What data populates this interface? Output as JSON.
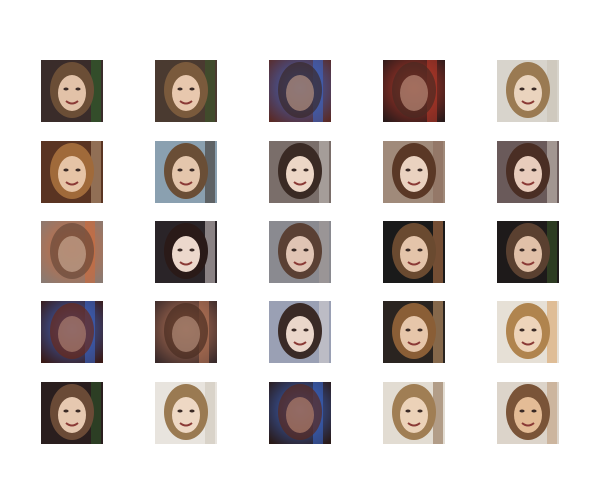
{
  "grid": {
    "rows": 5,
    "cols": 5,
    "tiles": [
      {
        "bg": "#3a2c2a",
        "hair": "#6b4e36",
        "skin": "#e2c2a8",
        "accent": "#2e6a2a",
        "style": "face"
      },
      {
        "bg": "#4a3a30",
        "hair": "#7a5a3c",
        "skin": "#e8c8ae",
        "accent": "#3a5a2a",
        "style": "face"
      },
      {
        "bg": "#5a2a26",
        "hair": "#3a2a2a",
        "skin": "#c8a08a",
        "accent": "#3a6ad0",
        "style": "blur"
      },
      {
        "bg": "#2a1a1a",
        "hair": "#4a2a22",
        "skin": "#c89a86",
        "accent": "#c03a2a",
        "style": "blur"
      },
      {
        "bg": "#d8d4cc",
        "hair": "#9a7a52",
        "skin": "#ead4be",
        "accent": "#c8c0b2",
        "style": "face"
      },
      {
        "bg": "#5a3422",
        "hair": "#a06a3a",
        "skin": "#e6c4a6",
        "accent": "#c0a080",
        "style": "face"
      },
      {
        "bg": "#8aa0b0",
        "hair": "#6a4e36",
        "skin": "#e4c6ac",
        "accent": "#3a3028",
        "style": "face"
      },
      {
        "bg": "#7a6e6a",
        "hair": "#3a2a24",
        "skin": "#ecd6c6",
        "accent": "#c8c4c0",
        "style": "face"
      },
      {
        "bg": "#a08a7a",
        "hair": "#5a3826",
        "skin": "#ead2c0",
        "accent": "#8a6a5a",
        "style": "face"
      },
      {
        "bg": "#6a5a5a",
        "hair": "#4a2e24",
        "skin": "#e8ccbc",
        "accent": "#d0c8c0",
        "style": "face"
      },
      {
        "bg": "#8a7a72",
        "hair": "#6a4a3a",
        "skin": "#d4b49e",
        "accent": "#d06a3a",
        "style": "blur"
      },
      {
        "bg": "#2a2428",
        "hair": "#2a1a18",
        "skin": "#ecd8cc",
        "accent": "#d8d0d0",
        "style": "face"
      },
      {
        "bg": "#8a8a90",
        "hair": "#5a4034",
        "skin": "#e0c4b4",
        "accent": "#a89e9a",
        "style": "face"
      },
      {
        "bg": "#1a1a1a",
        "hair": "#6a4a30",
        "skin": "#e4c4aa",
        "accent": "#c07a4a",
        "style": "face"
      },
      {
        "bg": "#1e1a1a",
        "hair": "#5a4030",
        "skin": "#e0c0a8",
        "accent": "#3a5a2a",
        "style": "face"
      },
      {
        "bg": "#3a1a16",
        "hair": "#6a2a1a",
        "skin": "#b88a78",
        "accent": "#3a6ad0",
        "style": "blur"
      },
      {
        "bg": "#3a2a2a",
        "hair": "#4a2e22",
        "skin": "#c09a86",
        "accent": "#c07a5a",
        "style": "blur"
      },
      {
        "bg": "#9aa0b4",
        "hair": "#3a2a26",
        "skin": "#ead6ca",
        "accent": "#d8d4d4",
        "style": "face"
      },
      {
        "bg": "#2a2420",
        "hair": "#8a5e36",
        "skin": "#e6c6aa",
        "accent": "#d0a070",
        "style": "face"
      },
      {
        "bg": "#e6e0d6",
        "hair": "#b0844e",
        "skin": "#eed4ba",
        "accent": "#d8a062",
        "style": "face"
      },
      {
        "bg": "#2a1e1e",
        "hair": "#6a4a36",
        "skin": "#e6c8b0",
        "accent": "#2e5a2a",
        "style": "face"
      },
      {
        "bg": "#e8e4de",
        "hair": "#9a7a52",
        "skin": "#eed8c4",
        "accent": "#ccc4b8",
        "style": "face"
      },
      {
        "bg": "#2a1a18",
        "hair": "#5a2a1e",
        "skin": "#c08a72",
        "accent": "#3a6ad0",
        "style": "blur"
      },
      {
        "bg": "#e2dcd2",
        "hair": "#a07e54",
        "skin": "#ecd2b8",
        "accent": "#8a6a4a",
        "style": "face"
      },
      {
        "bg": "#dcd4ca",
        "hair": "#7a5438",
        "skin": "#e4bc96",
        "accent": "#c09a7a",
        "style": "face"
      }
    ]
  }
}
